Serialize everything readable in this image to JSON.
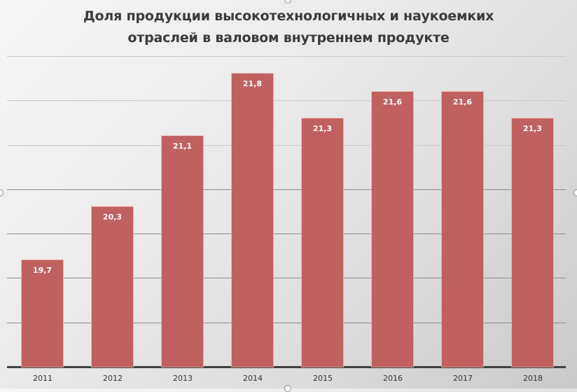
{
  "chart_data": {
    "type": "bar",
    "title": "Доля продукции высокотехнологичных и наукоемких отраслей в валовом внутреннем продукте",
    "title_lines": [
      "Доля продукции высокотехнологичных и наукоемких",
      "отраслей в валовом внутреннем продукте"
    ],
    "categories": [
      "2011",
      "2012",
      "2013",
      "2014",
      "2015",
      "2016",
      "2017",
      "2018"
    ],
    "values": [
      19.7,
      20.3,
      21.1,
      21.8,
      21.3,
      21.6,
      21.6,
      21.3
    ],
    "value_labels": [
      "19,7",
      "20,3",
      "21,1",
      "21,8",
      "21,3",
      "21,6",
      "21,6",
      "21,3"
    ],
    "xlabel": "",
    "ylabel": "",
    "ylim": [
      18.5,
      22
    ],
    "grid": true,
    "gridline_step": 0.5,
    "y_tick_labels_visible": false,
    "legend": "none",
    "bar_color": "#c0605f"
  }
}
